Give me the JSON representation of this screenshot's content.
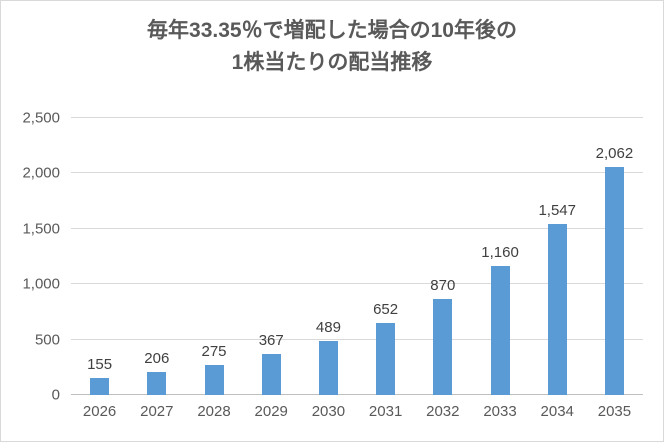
{
  "title": {
    "line1": "毎年33.35％で増配した場合の10年後の",
    "line2": "1株当たりの配当推移"
  },
  "chart_data": {
    "type": "bar",
    "title": "毎年33.35％で増配した場合の10年後の1株当たりの配当推移",
    "categories": [
      "2026",
      "2027",
      "2028",
      "2029",
      "2030",
      "2031",
      "2032",
      "2033",
      "2034",
      "2035"
    ],
    "values": [
      155,
      206,
      275,
      367,
      489,
      652,
      870,
      1160,
      1547,
      2062
    ],
    "value_labels": [
      "155",
      "206",
      "275",
      "367",
      "489",
      "652",
      "870",
      "1,160",
      "1,547",
      "2,062"
    ],
    "xlabel": "",
    "ylabel": "",
    "ylim": [
      0,
      2500
    ],
    "yticks": [
      {
        "value": 0,
        "label": "0"
      },
      {
        "value": 500,
        "label": "500"
      },
      {
        "value": 1000,
        "label": "1,000"
      },
      {
        "value": 1500,
        "label": "1,500"
      },
      {
        "value": 2000,
        "label": "2,000"
      },
      {
        "value": 2500,
        "label": "2,500"
      }
    ],
    "grid": "horizontal",
    "legend": "none",
    "data_labels": "above-bars",
    "bar_color": "#5b9bd5"
  },
  "colors": {
    "bar": "#5b9bd5",
    "gridline": "#d9d9d9",
    "axis_line": "#bfbfbf",
    "title_text": "#595959",
    "tick_text": "#595959",
    "data_label_text": "#404040",
    "background": "#ffffff",
    "frame_border": "#d9d9d9"
  }
}
